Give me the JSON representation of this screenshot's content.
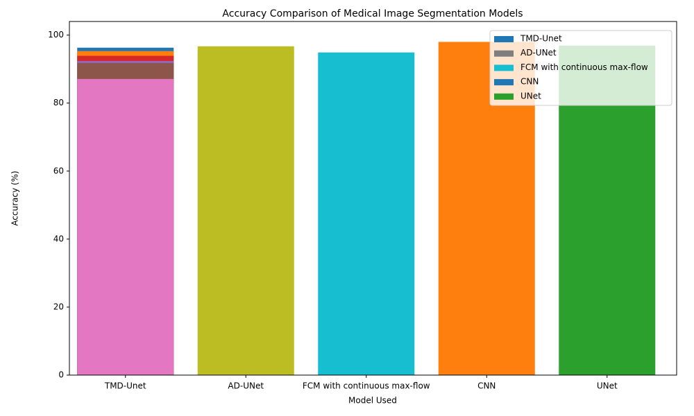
{
  "chart_data": {
    "type": "bar",
    "title": "Accuracy Comparison of Medical Image Segmentation Models",
    "x_label": "Model Used",
    "y_label": "Accuracy (%)",
    "categories": [
      "TMD-Unet",
      "AD-UNet",
      "FCM with continuous max-flow",
      "CNN",
      "UNet"
    ],
    "bars": [
      {
        "category": 0,
        "value": 96.3,
        "color": "#1f77b4"
      },
      {
        "category": 0,
        "value": 95.3,
        "color": "#ff7f0e"
      },
      {
        "category": 0,
        "value": 93.9,
        "color": "#d62728"
      },
      {
        "category": 0,
        "value": 92.4,
        "color": "#9467bd"
      },
      {
        "category": 0,
        "value": 91.8,
        "color": "#8c564b"
      },
      {
        "category": 0,
        "value": 87.1,
        "color": "#e377c2"
      },
      {
        "category": 1,
        "value": 96.7,
        "color": "#bcbd22"
      },
      {
        "category": 2,
        "value": 94.9,
        "color": "#17becf"
      },
      {
        "category": 3,
        "value": 98.0,
        "color": "#ff7f0e"
      },
      {
        "category": 4,
        "value": 96.9,
        "color": "#2ca02c"
      }
    ],
    "legend": [
      {
        "label": "TMD-Unet",
        "color": "#1f77b4"
      },
      {
        "label": "AD-UNet",
        "color": "#7f7f7f"
      },
      {
        "label": "FCM with continuous max-flow",
        "color": "#17becf"
      },
      {
        "label": "CNN",
        "color": "#1f77b4"
      },
      {
        "label": "UNet",
        "color": "#2ca02c"
      }
    ],
    "legend_position": "upper right",
    "ylim": [
      0,
      104
    ],
    "yticks": [
      0,
      20,
      40,
      60,
      80,
      100
    ]
  }
}
